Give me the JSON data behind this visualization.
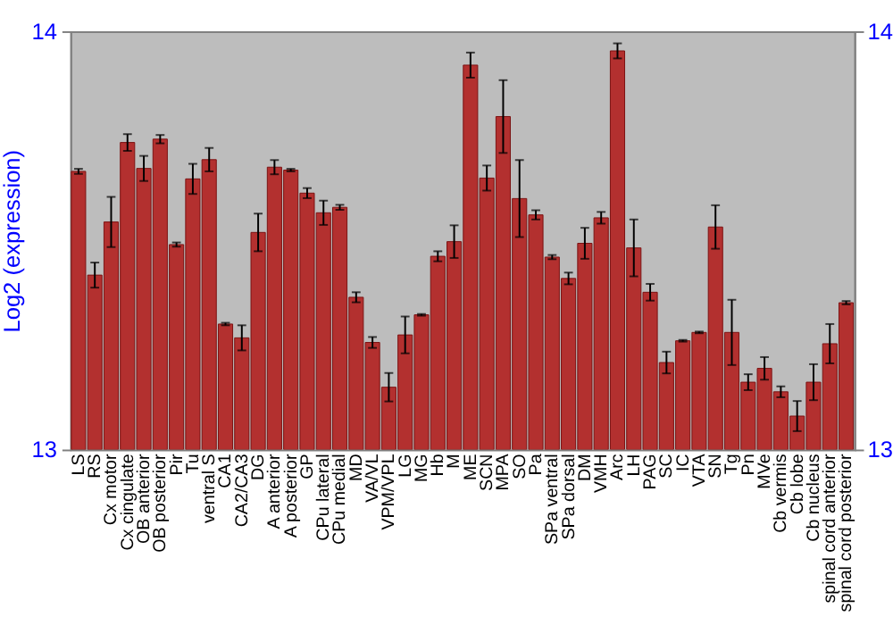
{
  "chart_data": {
    "type": "bar",
    "ylabel": "Log2 (expression)",
    "categories": [
      "LS",
      "RS",
      "Cx motor",
      "Cx cingulate",
      "OB anterior",
      "OB posterior",
      "Pir",
      "Tu",
      "ventral S",
      "CA1",
      "CA2/CA3",
      "DG",
      "A anterior",
      "A posterior",
      "GP",
      "CPu lateral",
      "CPu medial",
      "MD",
      "VA/VL",
      "VPM/VPL",
      "LG",
      "MG",
      "Hb",
      "M",
      "ME",
      "SCN",
      "MPA",
      "SO",
      "Pa",
      "SPa ventral",
      "SPa dorsal",
      "DM",
      "VMH",
      "Arc",
      "LH",
      "PAG",
      "SC",
      "IC",
      "VTA",
      "SN",
      "Tg",
      "Pn",
      "MVe",
      "Cb vermis",
      "Cb lobe",
      "Cb nucleus",
      "spinal cord anterior",
      "spinal cord posterior"
    ],
    "values": [
      13.665,
      13.417,
      13.544,
      13.734,
      13.672,
      13.742,
      13.49,
      13.647,
      13.693,
      13.3,
      13.267,
      13.519,
      13.675,
      13.668,
      13.613,
      13.566,
      13.579,
      13.364,
      13.256,
      13.149,
      13.274,
      13.322,
      13.462,
      13.497,
      13.919,
      13.649,
      13.796,
      13.6,
      13.561,
      13.46,
      13.409,
      13.493,
      13.554,
      13.953,
      13.482,
      13.376,
      13.208,
      13.26,
      13.28,
      13.532,
      13.28,
      13.161,
      13.194,
      13.138,
      13.08,
      13.161,
      13.253,
      13.351
    ],
    "errors": [
      0.006,
      0.03,
      0.06,
      0.02,
      0.03,
      0.01,
      0.005,
      0.036,
      0.028,
      0.003,
      0.03,
      0.045,
      0.017,
      0.003,
      0.012,
      0.029,
      0.006,
      0.012,
      0.013,
      0.034,
      0.044,
      0.002,
      0.012,
      0.039,
      0.03,
      0.03,
      0.087,
      0.092,
      0.011,
      0.005,
      0.014,
      0.037,
      0.014,
      0.018,
      0.068,
      0.02,
      0.026,
      0.002,
      0.002,
      0.052,
      0.078,
      0.019,
      0.027,
      0.013,
      0.036,
      0.043,
      0.047,
      0.004
    ],
    "color": "#b3302f",
    "ylim": [
      13,
      14
    ],
    "yticks": [
      13,
      14
    ],
    "y2lim": [
      13,
      14
    ],
    "y2ticks": [
      13,
      14
    ],
    "grid": false,
    "legend": false
  }
}
